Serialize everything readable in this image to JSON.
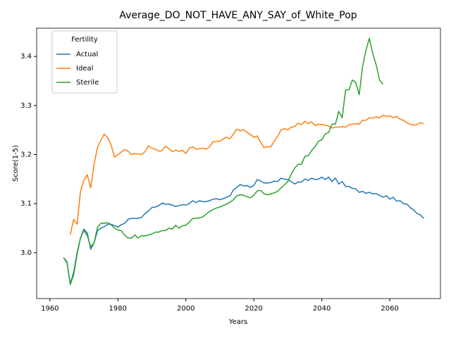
{
  "chart_data": {
    "type": "line",
    "title": "Average_DO_NOT_HAVE_ANY_SAY_of_White_Pop",
    "x_label": "Years",
    "y_label": "Score(1-5)",
    "x": [
      1964,
      1965,
      1966,
      1967,
      1968,
      1969,
      1970,
      1971,
      1972,
      1973,
      1974,
      1975,
      1976,
      1977,
      1978,
      1979,
      1980,
      1981,
      1982,
      1983,
      1984,
      1985,
      1986,
      1987,
      1988,
      1989,
      1990,
      1991,
      1992,
      1993,
      1994,
      1995,
      1996,
      1997,
      1998,
      1999,
      2000,
      2001,
      2002,
      2003,
      2004,
      2005,
      2006,
      2007,
      2008,
      2009,
      2010,
      2011,
      2012,
      2013,
      2014,
      2015,
      2016,
      2017,
      2018,
      2019,
      2020,
      2021,
      2022,
      2023,
      2024,
      2025,
      2026,
      2027,
      2028,
      2029,
      2030,
      2031,
      2032,
      2033,
      2034,
      2035,
      2036,
      2037,
      2038,
      2039,
      2040,
      2041,
      2042,
      2043,
      2044,
      2045,
      2046,
      2047,
      2048,
      2049,
      2050,
      2051,
      2052,
      2053,
      2054,
      2055,
      2056,
      2057,
      2058,
      2059,
      2060,
      2061,
      2062,
      2063,
      2064,
      2065,
      2066,
      2067,
      2068,
      2069,
      2070
    ],
    "series": [
      {
        "name": "Actual",
        "color": "#1f77b4",
        "values": [
          2.99,
          2.98,
          2.937,
          2.96,
          3.0,
          3.03,
          3.048,
          3.04,
          3.007,
          3.02,
          3.045,
          3.05,
          3.053,
          3.058,
          3.058,
          3.055,
          3.052,
          3.057,
          3.06,
          3.068,
          3.07,
          3.07,
          3.07,
          3.072,
          3.08,
          3.085,
          3.092,
          3.093,
          3.096,
          3.101,
          3.099,
          3.099,
          3.097,
          3.094,
          3.096,
          3.098,
          3.097,
          3.1,
          3.106,
          3.102,
          3.106,
          3.104,
          3.104,
          3.106,
          3.109,
          3.11,
          3.108,
          3.11,
          3.113,
          3.116,
          3.128,
          3.133,
          3.139,
          3.136,
          3.137,
          3.133,
          3.137,
          3.149,
          3.146,
          3.142,
          3.142,
          3.143,
          3.146,
          3.145,
          3.152,
          3.15,
          3.149,
          3.145,
          3.14,
          3.144,
          3.144,
          3.15,
          3.147,
          3.152,
          3.149,
          3.15,
          3.154,
          3.149,
          3.154,
          3.145,
          3.152,
          3.14,
          3.145,
          3.135,
          3.135,
          3.131,
          3.13,
          3.123,
          3.125,
          3.121,
          3.123,
          3.12,
          3.12,
          3.117,
          3.113,
          3.116,
          3.109,
          3.113,
          3.105,
          3.106,
          3.1,
          3.099,
          3.092,
          3.087,
          3.08,
          3.077,
          3.07
        ]
      },
      {
        "name": "Ideal",
        "color": "#ff7f0e",
        "values": [
          null,
          null,
          3.037,
          3.068,
          3.058,
          3.125,
          3.148,
          3.159,
          3.132,
          3.18,
          3.215,
          3.229,
          3.242,
          3.234,
          3.22,
          3.195,
          3.2,
          3.205,
          3.21,
          3.207,
          3.2,
          3.202,
          3.201,
          3.2,
          3.206,
          3.218,
          3.213,
          3.211,
          3.207,
          3.208,
          3.217,
          3.212,
          3.206,
          3.209,
          3.206,
          3.209,
          3.202,
          3.213,
          3.216,
          3.211,
          3.212,
          3.213,
          3.211,
          3.216,
          3.226,
          3.227,
          3.227,
          3.232,
          3.235,
          3.232,
          3.242,
          3.252,
          3.248,
          3.251,
          3.245,
          3.241,
          3.235,
          3.238,
          3.225,
          3.214,
          3.216,
          3.216,
          3.227,
          3.237,
          3.25,
          3.253,
          3.25,
          3.256,
          3.257,
          3.264,
          3.261,
          3.268,
          3.263,
          3.267,
          3.259,
          3.262,
          3.261,
          3.26,
          3.258,
          3.254,
          3.256,
          3.256,
          3.257,
          3.256,
          3.261,
          3.262,
          3.263,
          3.262,
          3.27,
          3.27,
          3.275,
          3.274,
          3.277,
          3.275,
          3.28,
          3.278,
          3.279,
          3.275,
          3.278,
          3.272,
          3.27,
          3.265,
          3.262,
          3.26,
          3.261,
          3.265,
          3.263
        ]
      },
      {
        "name": "Sterile",
        "color": "#2ca02c",
        "values": [
          2.99,
          2.982,
          2.935,
          2.955,
          2.997,
          3.03,
          3.045,
          3.035,
          3.012,
          3.02,
          3.052,
          3.06,
          3.06,
          3.061,
          3.057,
          3.05,
          3.046,
          3.045,
          3.036,
          3.03,
          3.03,
          3.036,
          3.03,
          3.035,
          3.034,
          3.036,
          3.038,
          3.042,
          3.042,
          3.045,
          3.045,
          3.05,
          3.048,
          3.056,
          3.05,
          3.055,
          3.056,
          3.062,
          3.07,
          3.07,
          3.071,
          3.073,
          3.079,
          3.084,
          3.088,
          3.091,
          3.093,
          3.096,
          3.099,
          3.103,
          3.108,
          3.116,
          3.118,
          3.117,
          3.114,
          3.112,
          3.117,
          3.126,
          3.127,
          3.12,
          3.118,
          3.12,
          3.122,
          3.125,
          3.132,
          3.138,
          3.145,
          3.16,
          3.172,
          3.18,
          3.18,
          3.196,
          3.198,
          3.208,
          3.216,
          3.227,
          3.23,
          3.242,
          3.245,
          3.262,
          3.262,
          3.288,
          3.275,
          3.332,
          3.332,
          3.352,
          3.347,
          3.322,
          3.38,
          3.413,
          3.437,
          3.405,
          3.383,
          3.352,
          3.343,
          null,
          null,
          null,
          null,
          null,
          null,
          null,
          null,
          null,
          null,
          null,
          null
        ]
      }
    ],
    "xlim": [
      1956.1,
      2074.9
    ],
    "xticks": [
      1960,
      1980,
      2000,
      2020,
      2040,
      2060
    ],
    "ylim": [
      2.9065,
      3.4576
    ],
    "yticks": [
      {
        "value": 3,
        "label": "3.0"
      },
      3.1,
      3.2,
      3.3,
      3.4
    ],
    "grid": false,
    "legend": {
      "title": "Fertility",
      "position": "upper left"
    }
  }
}
